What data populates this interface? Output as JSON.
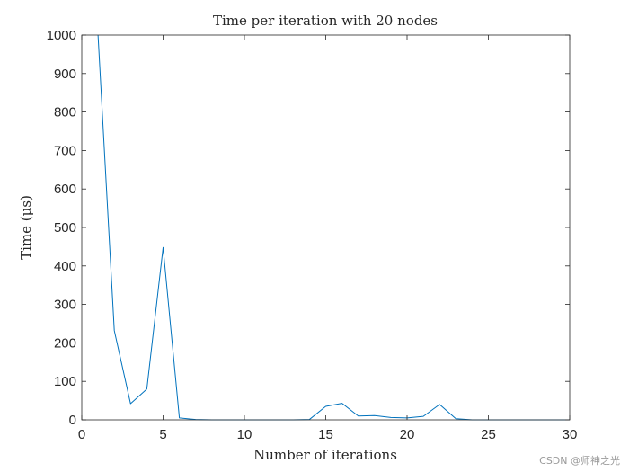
{
  "chart_data": {
    "type": "line",
    "title": "Time per iteration with 20 nodes",
    "xlabel": "Number of iterations",
    "ylabel": "Time (μs)",
    "xlim": [
      0,
      30
    ],
    "ylim": [
      0,
      1000
    ],
    "xticks": [
      0,
      5,
      10,
      15,
      20,
      25,
      30
    ],
    "yticks": [
      0,
      100,
      200,
      300,
      400,
      500,
      600,
      700,
      800,
      900,
      1000
    ],
    "grid": false,
    "color": "#0072BD",
    "series": [
      {
        "x": [
          1,
          2,
          3,
          4,
          5,
          6,
          7,
          8,
          9,
          10,
          11,
          12,
          13,
          14,
          15,
          16,
          17,
          18,
          19,
          20,
          21,
          22,
          23,
          24,
          25,
          26,
          27,
          28,
          29,
          30
        ],
        "values": [
          1000,
          232,
          42,
          80,
          448,
          5,
          1,
          0,
          0,
          0,
          0,
          0,
          0,
          1,
          35,
          43,
          10,
          11,
          6,
          5,
          9,
          40,
          3,
          0,
          0,
          0,
          0,
          0,
          0,
          0
        ]
      }
    ]
  },
  "watermark": "CSDN @师神之光"
}
